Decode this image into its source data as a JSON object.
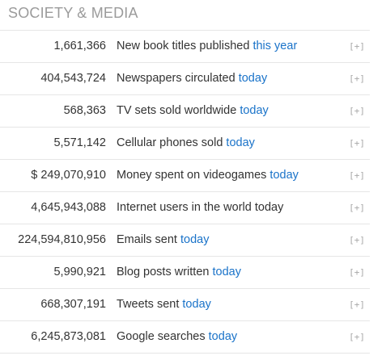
{
  "section": {
    "title": "SOCIETY & MEDIA"
  },
  "expand_label": "[+]",
  "colors": {
    "highlight": "#1a73c9",
    "title": "#9b9b9b",
    "divider": "#e6e6e6"
  },
  "rows": [
    {
      "value": "1,661,366",
      "label": "New book titles published ",
      "highlight": "this year"
    },
    {
      "value": "404,543,724",
      "label": "Newspapers circulated ",
      "highlight": "today"
    },
    {
      "value": "568,363",
      "label": "TV sets sold worldwide ",
      "highlight": "today"
    },
    {
      "value": "5,571,142",
      "label": "Cellular phones sold ",
      "highlight": "today"
    },
    {
      "value": "$ 249,070,910",
      "label": "Money spent on videogames ",
      "highlight": "today"
    },
    {
      "value": "4,645,943,088",
      "label": "Internet users in the world today",
      "highlight": ""
    },
    {
      "value": "224,594,810,956",
      "label": "Emails sent ",
      "highlight": "today"
    },
    {
      "value": "5,990,921",
      "label": "Blog posts written ",
      "highlight": "today"
    },
    {
      "value": "668,307,191",
      "label": "Tweets sent ",
      "highlight": "today"
    },
    {
      "value": "6,245,873,081",
      "label": "Google searches ",
      "highlight": "today"
    }
  ]
}
